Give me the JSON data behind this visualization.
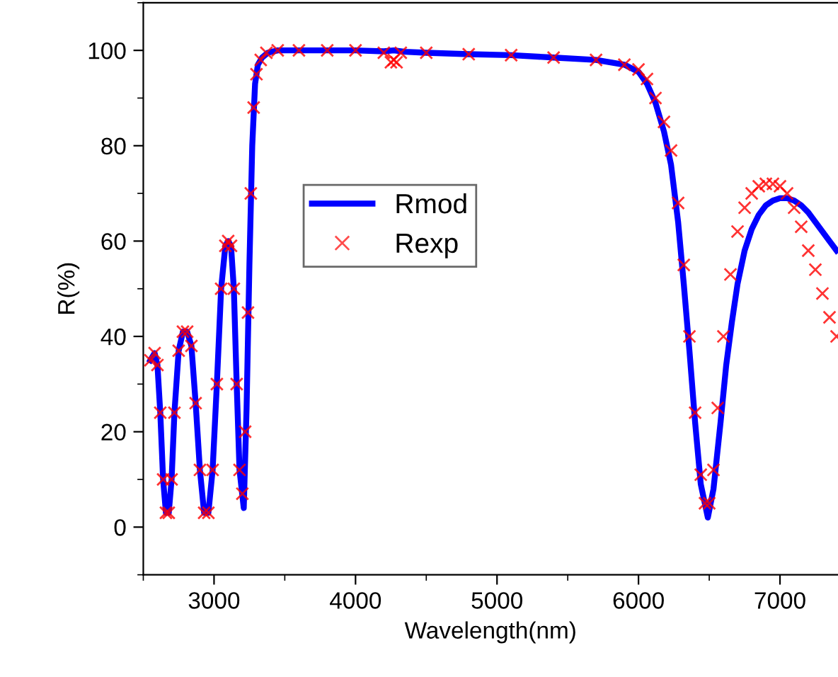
{
  "chart_data": {
    "type": "line",
    "xlabel": "Wavelength(nm)",
    "ylabel": "R(%)",
    "xlim": [
      2500,
      7410
    ],
    "ylim": [
      -10,
      110
    ],
    "xticks": [
      3000,
      4000,
      5000,
      6000,
      7000
    ],
    "yticks": [
      0,
      20,
      40,
      60,
      80,
      100
    ],
    "grid": false,
    "legend": "center",
    "series": [
      {
        "name": "Rmod",
        "color": "#0000ff",
        "marker": "none",
        "line_style": "solid",
        "x": [
          2550,
          2580,
          2600,
          2620,
          2640,
          2660,
          2680,
          2700,
          2720,
          2750,
          2780,
          2810,
          2840,
          2870,
          2900,
          2930,
          2960,
          2990,
          3020,
          3050,
          3080,
          3100,
          3120,
          3140,
          3160,
          3180,
          3210,
          3230,
          3250,
          3270,
          3290,
          3310,
          3340,
          3380,
          3450,
          3600,
          3800,
          4000,
          4200,
          4270,
          4350,
          4500,
          4800,
          5100,
          5400,
          5700,
          5900,
          6000,
          6060,
          6120,
          6180,
          6230,
          6280,
          6320,
          6360,
          6400,
          6440,
          6490,
          6530,
          6580,
          6620,
          6660,
          6700,
          6750,
          6800,
          6850,
          6900,
          6950,
          7000,
          7050,
          7100,
          7150,
          7200,
          7250,
          7300,
          7350,
          7400
        ],
        "values": [
          35,
          36.5,
          34,
          24,
          10,
          3,
          3,
          10,
          24,
          37,
          41,
          41,
          38,
          26,
          12,
          3,
          3,
          12,
          30,
          50,
          59,
          60,
          59,
          50,
          30,
          12,
          4,
          25,
          55,
          80,
          93,
          97,
          98.5,
          99.5,
          100,
          100,
          100,
          100,
          99.8,
          100,
          99.7,
          99.5,
          99.2,
          99,
          98.5,
          98,
          97,
          95.5,
          93,
          89,
          83,
          76,
          64,
          51,
          37,
          22,
          9,
          2,
          8,
          22,
          34,
          43,
          51,
          58,
          62.5,
          65.5,
          67.5,
          68.5,
          69,
          69,
          68.5,
          67.5,
          66,
          64,
          62,
          60,
          58
        ]
      },
      {
        "name": "Rexp",
        "type": "scatter",
        "color": "#ff0000",
        "marker": "cross",
        "x": [
          2550,
          2580,
          2600,
          2620,
          2640,
          2660,
          2680,
          2700,
          2720,
          2750,
          2780,
          2810,
          2840,
          2870,
          2900,
          2930,
          2960,
          2990,
          3020,
          3050,
          3080,
          3100,
          3120,
          3140,
          3160,
          3180,
          3200,
          3220,
          3240,
          3260,
          3280,
          3300,
          3330,
          3370,
          3450,
          3600,
          3800,
          4000,
          4200,
          4250,
          4270,
          4290,
          4320,
          4500,
          4800,
          5100,
          5400,
          5700,
          5900,
          6000,
          6060,
          6120,
          6180,
          6230,
          6280,
          6320,
          6360,
          6400,
          6440,
          6470,
          6500,
          6530,
          6560,
          6600,
          6650,
          6700,
          6750,
          6800,
          6850,
          6900,
          6950,
          7000,
          7050,
          7100,
          7150,
          7200,
          7250,
          7300,
          7350,
          7400
        ],
        "values": [
          35,
          36.5,
          34,
          24,
          10,
          3,
          3,
          10,
          24,
          37,
          41,
          41,
          38,
          26,
          12,
          3,
          3,
          12,
          30,
          50,
          59,
          60,
          59,
          50,
          30,
          12,
          7,
          20,
          45,
          70,
          88,
          95,
          98,
          99.5,
          100,
          100,
          100,
          100,
          99.5,
          97.5,
          98,
          97.5,
          99.5,
          99.5,
          99.2,
          99,
          98.5,
          98,
          97,
          96,
          94,
          90,
          85,
          79,
          68,
          55,
          40,
          24,
          11,
          5,
          5,
          12,
          25,
          40,
          53,
          62,
          67,
          70,
          71.5,
          72,
          72,
          71.5,
          70,
          67,
          63,
          58,
          54,
          49,
          44,
          40
        ]
      }
    ]
  }
}
